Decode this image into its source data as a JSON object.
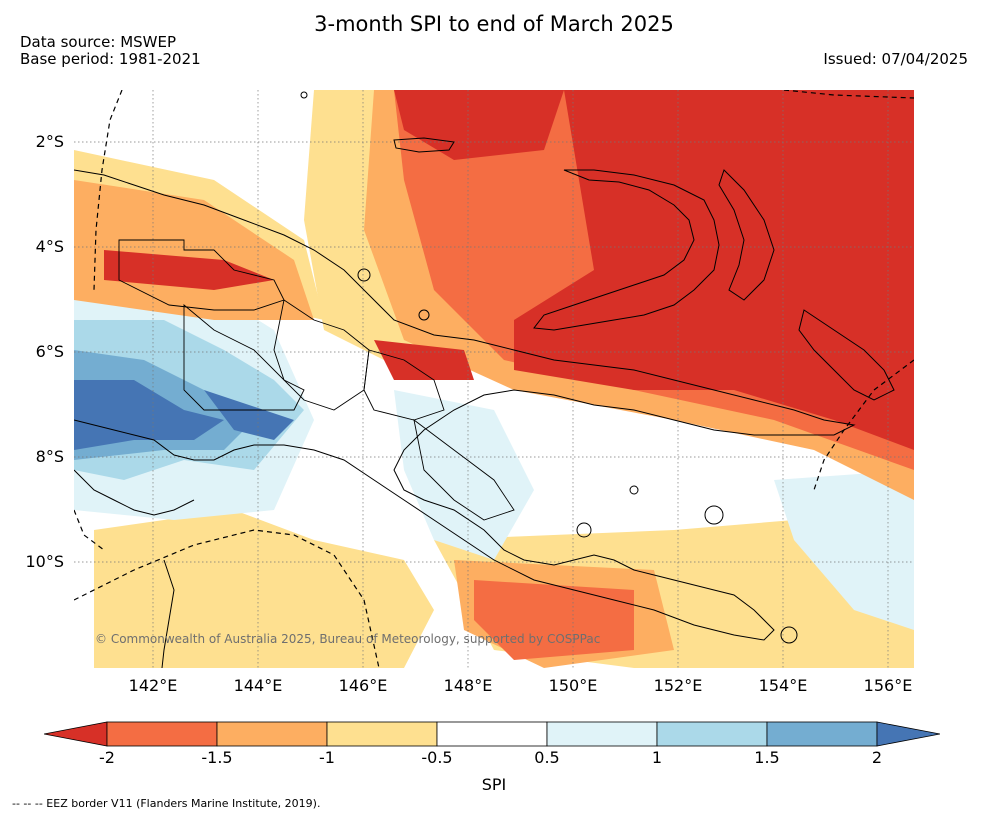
{
  "header": {
    "title": "3-month SPI to end of March 2025",
    "data_source": "Data source: MSWEP",
    "base_period": "Base period: 1981-2021",
    "issued": "Issued: 07/04/2025"
  },
  "map": {
    "lat_labels": [
      "2°S",
      "4°S",
      "6°S",
      "8°S",
      "10°S"
    ],
    "lon_labels": [
      "142°E",
      "144°E",
      "146°E",
      "148°E",
      "150°E",
      "152°E",
      "154°E",
      "156°E"
    ],
    "copyright": "© Commonwealth of Australia 2025, Bureau of Meteorology, supported by COSPPac"
  },
  "legend": {
    "ticks": [
      "-2",
      "-1.5",
      "-1",
      "-0.5",
      "0.5",
      "1",
      "1.5",
      "2"
    ],
    "colors": [
      "#d73027",
      "#f46d43",
      "#fdae61",
      "#fee090",
      "#ffffff",
      "#e0f3f8",
      "#abd9e9",
      "#74add1",
      "#4575b4"
    ],
    "label": "SPI"
  },
  "footer": {
    "eez_note": "--  --  -- EEZ border V11 (Flanders Marine Institute, 2019)."
  }
}
